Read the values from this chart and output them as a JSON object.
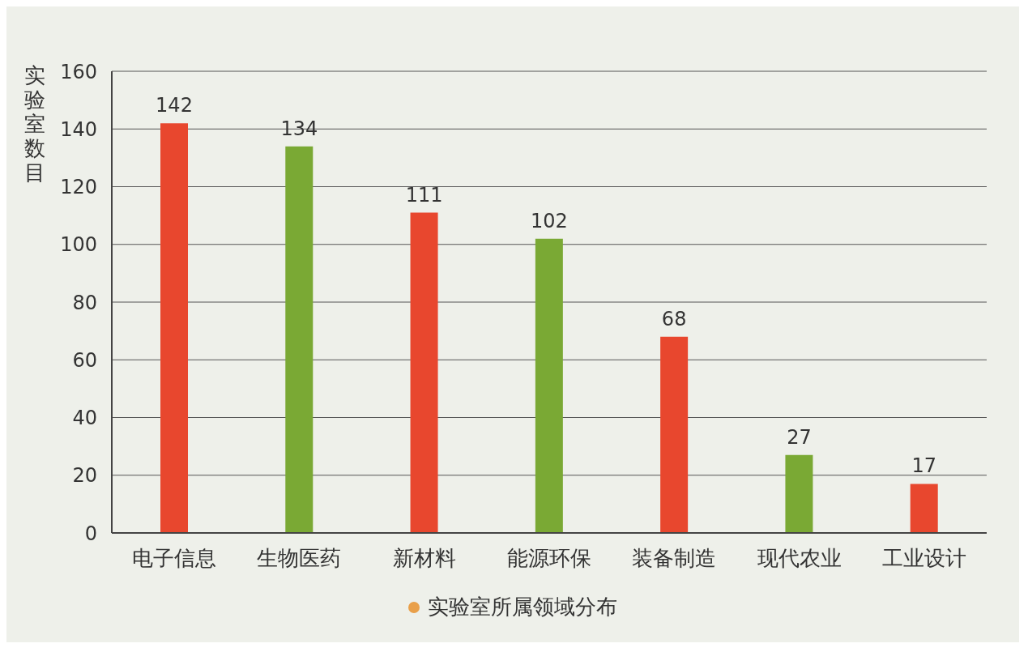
{
  "chart_data": {
    "type": "bar",
    "ylabel": "实验室数目",
    "categories": [
      "电子信息",
      "生物医药",
      "新材料",
      "能源环保",
      "装备制造",
      "现代农业",
      "工业设计"
    ],
    "series": [
      {
        "name": "实验室所属领域分布",
        "color": "#e9a04a",
        "colors": [
          "#e8472e",
          "#7aa934",
          "#e8472e",
          "#7aa934",
          "#e8472e",
          "#7aa934",
          "#e8472e"
        ],
        "values": [
          142,
          134,
          111,
          102,
          68,
          27,
          17
        ]
      }
    ],
    "ylim": [
      0,
      160
    ],
    "yticks": [
      0,
      20,
      40,
      60,
      80,
      100,
      120,
      140,
      160
    ],
    "grid": "y",
    "data_labels": true,
    "legend": "bottom"
  }
}
